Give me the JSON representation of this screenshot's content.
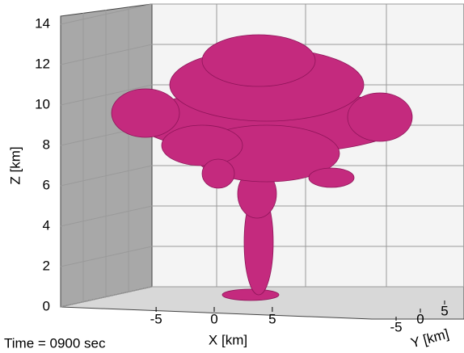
{
  "chart_data": {
    "type": "isosurface3d",
    "annotation": "Time = 0900 sec",
    "x_label": "X [km]",
    "y_label": "Y [km]",
    "z_label": "Z [km]",
    "xlim": [
      -8,
      8
    ],
    "ylim": [
      -8,
      8
    ],
    "zlim": [
      0,
      14
    ],
    "xticks": [
      -5,
      0,
      5
    ],
    "yticks": [
      -5,
      0,
      5
    ],
    "zticks": [
      0,
      2,
      4,
      6,
      8,
      10,
      12,
      14
    ],
    "color": "#c42a7e",
    "grid": true
  }
}
